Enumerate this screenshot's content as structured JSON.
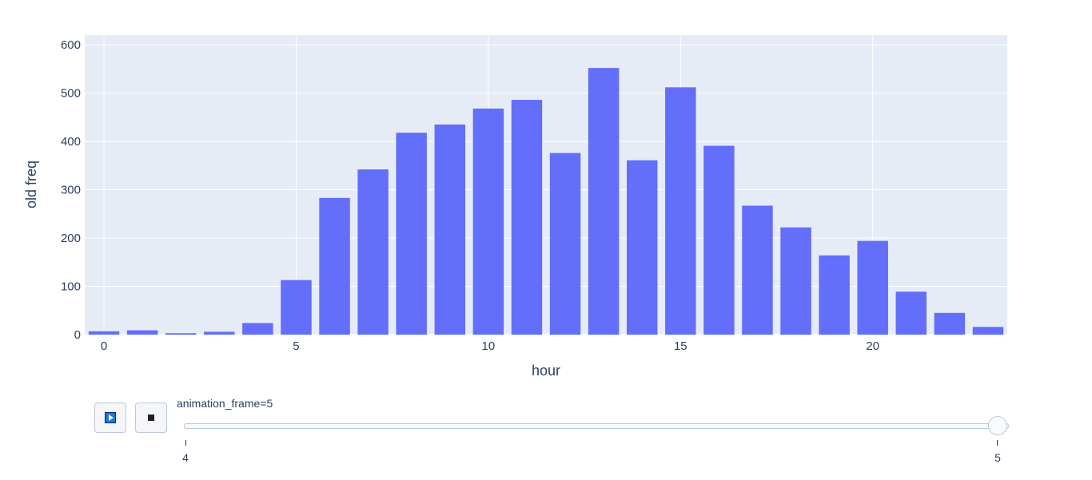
{
  "chart_data": {
    "type": "bar",
    "xlabel": "hour",
    "ylabel": "old freq",
    "x": [
      0,
      1,
      2,
      3,
      4,
      5,
      6,
      7,
      8,
      9,
      10,
      11,
      12,
      13,
      14,
      15,
      16,
      17,
      18,
      19,
      20,
      21,
      22,
      23
    ],
    "values": [
      7,
      9,
      3,
      6,
      24,
      113,
      283,
      342,
      418,
      435,
      468,
      486,
      376,
      552,
      361,
      512,
      391,
      267,
      222,
      164,
      194,
      89,
      45,
      16
    ],
    "xlim": [
      -0.5,
      23.5
    ],
    "ylim": [
      0,
      620
    ],
    "xticks": [
      0,
      5,
      10,
      15,
      20
    ],
    "yticks": [
      0,
      100,
      200,
      300,
      400,
      500,
      600
    ],
    "grid": true,
    "colors": {
      "bar": "#636efa",
      "plot_bg": "#e5ecf6",
      "grid": "#ffffff",
      "text": "#2a3f5f"
    }
  },
  "animation": {
    "label": "animation_frame=5",
    "play_icon": "play-icon",
    "stop_icon": "stop-icon",
    "steps": [
      "4",
      "5"
    ],
    "current_step": "5"
  }
}
